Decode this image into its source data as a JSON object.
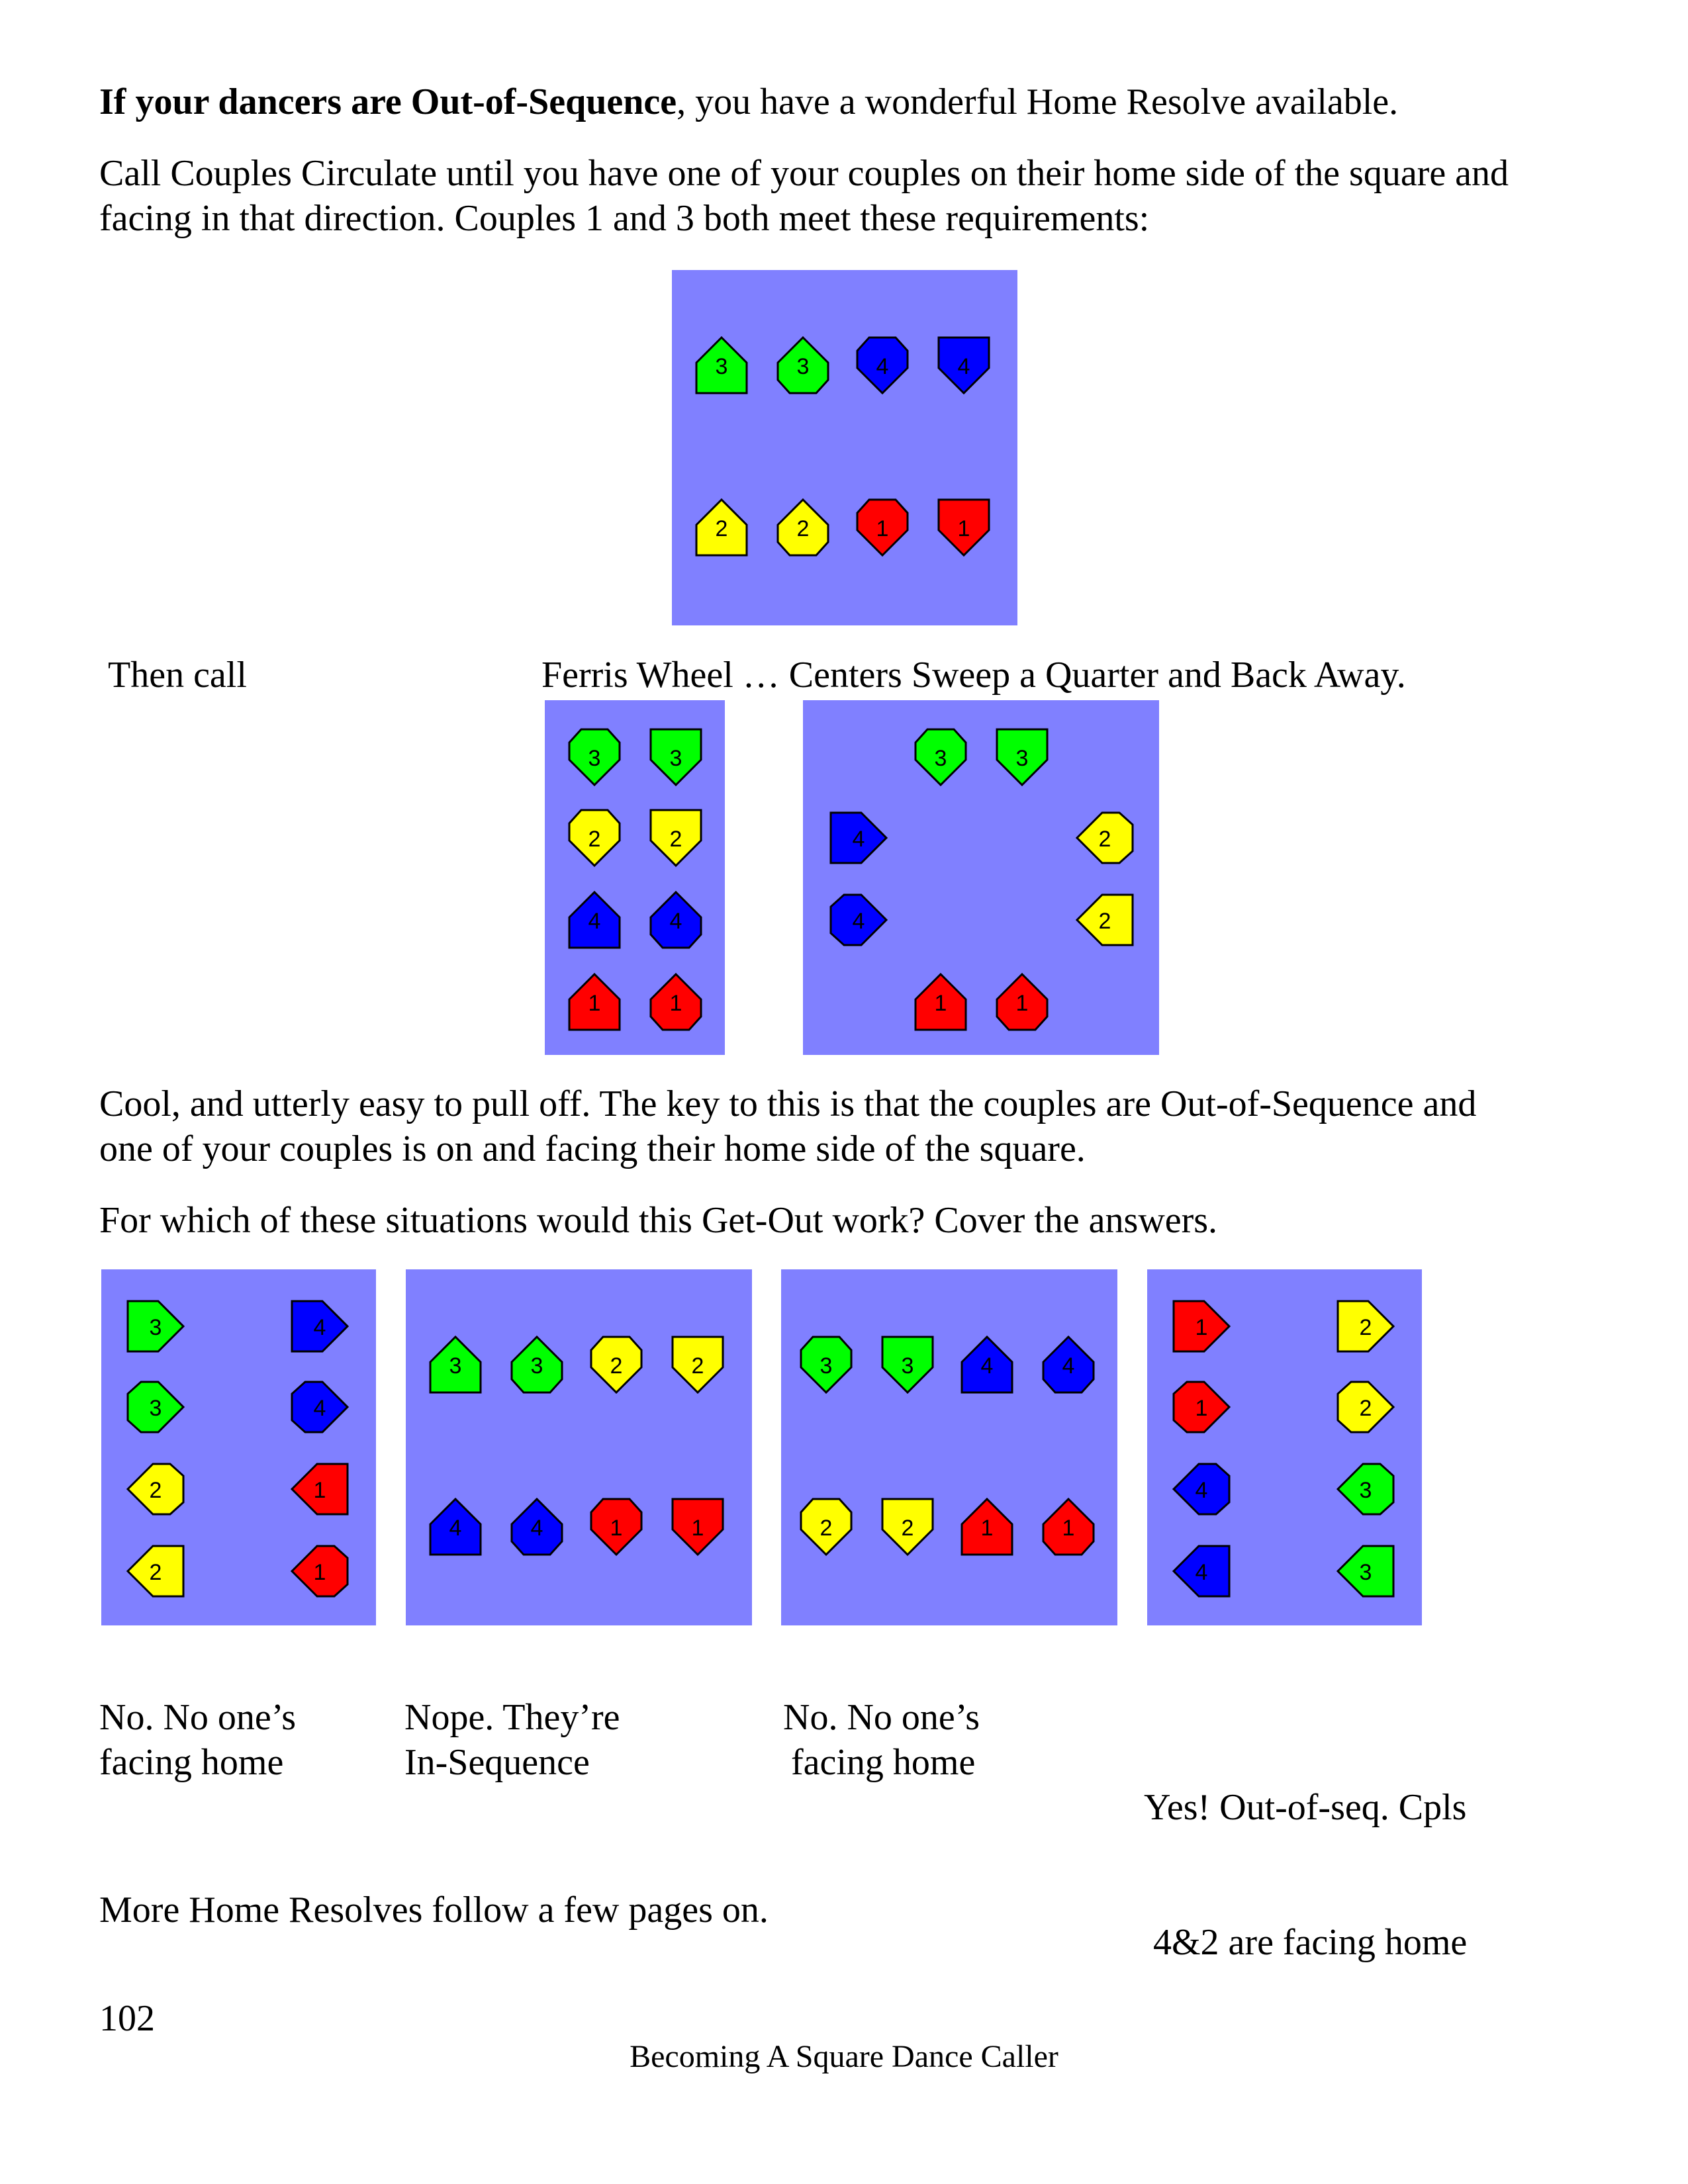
{
  "intro": {
    "bold_lead": "If your dancers are Out-of-Sequence",
    "rest": ", you have a wonderful Home Resolve available."
  },
  "para2": {
    "line1": "Call Couples Circulate until you have one of your couples on their home side of the square and",
    "line2": "facing in that direction. Couples 1 and 3 both meet these requirements:"
  },
  "then_row": {
    "then_call": "Then call",
    "calls": "Ferris Wheel … Centers Sweep a Quarter and Back Away."
  },
  "para3": {
    "line1": "Cool, and utterly easy to pull off. The key to this is that the couples are Out-of-Sequence and",
    "line2": "one of your couples is on and facing their home side of the square."
  },
  "question": "For which of these situations would this Get-Out work? Cover the answers.",
  "answers": [
    {
      "line1": "No. No one’s",
      "line2": "facing home"
    },
    {
      "line1": "Nope. They’re",
      "line2": "In-Sequence"
    },
    {
      "line1": "No. No one’s",
      "line2": "facing home"
    },
    {
      "line1": "Yes! Out-of-seq. Cpls",
      "line2": " 4&2 are facing home"
    }
  ],
  "closing": "More Home Resolves follow a few pages on.",
  "page_number": "102",
  "footer_title": "Becoming A Square Dance Caller",
  "colors": {
    "panel": "#8080ff",
    "couple_1": "#ff0000",
    "couple_2": "#ffff00",
    "couple_3": "#00ff00",
    "couple_4": "#0000ff"
  },
  "diagrams": {
    "main": [
      {
        "n": "3",
        "s": "square",
        "d": "up"
      },
      {
        "n": "3",
        "s": "round",
        "d": "up"
      },
      {
        "n": "4",
        "s": "round",
        "d": "down"
      },
      {
        "n": "4",
        "s": "square",
        "d": "down"
      },
      {
        "n": "2",
        "s": "square",
        "d": "up"
      },
      {
        "n": "2",
        "s": "round",
        "d": "up"
      },
      {
        "n": "1",
        "s": "round",
        "d": "down"
      },
      {
        "n": "1",
        "s": "square",
        "d": "down"
      }
    ],
    "ferris": [
      {
        "n": "3",
        "s": "round",
        "d": "down"
      },
      {
        "n": "3",
        "s": "square",
        "d": "down"
      },
      {
        "n": "2",
        "s": "round",
        "d": "down"
      },
      {
        "n": "2",
        "s": "square",
        "d": "down"
      },
      {
        "n": "4",
        "s": "square",
        "d": "up"
      },
      {
        "n": "4",
        "s": "round",
        "d": "up"
      },
      {
        "n": "1",
        "s": "square",
        "d": "up"
      },
      {
        "n": "1",
        "s": "round",
        "d": "up"
      }
    ],
    "sweep": [
      {
        "n": "3",
        "s": "round",
        "d": "down"
      },
      {
        "n": "3",
        "s": "square",
        "d": "down"
      },
      {
        "n": "4",
        "s": "square",
        "d": "right"
      },
      {
        "n": "4",
        "s": "round",
        "d": "right"
      },
      {
        "n": "2",
        "s": "round",
        "d": "left"
      },
      {
        "n": "2",
        "s": "square",
        "d": "left"
      },
      {
        "n": "1",
        "s": "square",
        "d": "up"
      },
      {
        "n": "1",
        "s": "round",
        "d": "up"
      }
    ],
    "q1": [
      {
        "n": "3",
        "s": "square",
        "d": "right"
      },
      {
        "n": "3",
        "s": "round",
        "d": "right"
      },
      {
        "n": "2",
        "s": "round",
        "d": "left"
      },
      {
        "n": "2",
        "s": "square",
        "d": "left"
      },
      {
        "n": "4",
        "s": "square",
        "d": "right"
      },
      {
        "n": "4",
        "s": "round",
        "d": "right"
      },
      {
        "n": "1",
        "s": "round",
        "d": "left"
      },
      {
        "n": "1",
        "s": "square",
        "d": "left"
      }
    ],
    "q2": [
      {
        "n": "3",
        "s": "square",
        "d": "up"
      },
      {
        "n": "3",
        "s": "round",
        "d": "up"
      },
      {
        "n": "2",
        "s": "round",
        "d": "down"
      },
      {
        "n": "2",
        "s": "square",
        "d": "down"
      },
      {
        "n": "4",
        "s": "square",
        "d": "up"
      },
      {
        "n": "4",
        "s": "round",
        "d": "up"
      },
      {
        "n": "1",
        "s": "round",
        "d": "down"
      },
      {
        "n": "1",
        "s": "square",
        "d": "down"
      }
    ],
    "q3": [
      {
        "n": "3",
        "s": "round",
        "d": "down"
      },
      {
        "n": "3",
        "s": "square",
        "d": "down"
      },
      {
        "n": "4",
        "s": "square",
        "d": "up"
      },
      {
        "n": "4",
        "s": "round",
        "d": "up"
      },
      {
        "n": "2",
        "s": "round",
        "d": "down"
      },
      {
        "n": "2",
        "s": "square",
        "d": "down"
      },
      {
        "n": "1",
        "s": "square",
        "d": "up"
      },
      {
        "n": "1",
        "s": "round",
        "d": "up"
      }
    ],
    "q4": [
      {
        "n": "1",
        "s": "square",
        "d": "right"
      },
      {
        "n": "1",
        "s": "round",
        "d": "right"
      },
      {
        "n": "4",
        "s": "round",
        "d": "left"
      },
      {
        "n": "4",
        "s": "square",
        "d": "left"
      },
      {
        "n": "2",
        "s": "square",
        "d": "right"
      },
      {
        "n": "2",
        "s": "round",
        "d": "right"
      },
      {
        "n": "3",
        "s": "round",
        "d": "left"
      },
      {
        "n": "3",
        "s": "square",
        "d": "left"
      }
    ]
  }
}
